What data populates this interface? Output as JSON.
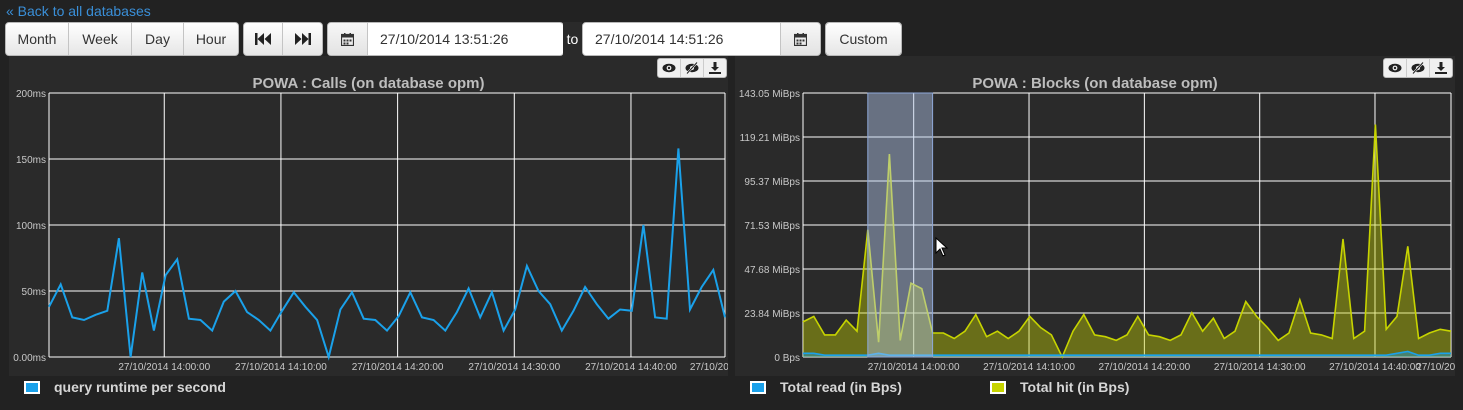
{
  "back_link": "« Back to all databases",
  "range_buttons": [
    "Month",
    "Week",
    "Day",
    "Hour"
  ],
  "nav_icons": [
    "skip-backward-icon",
    "skip-forward-icon"
  ],
  "date_from": "27/10/2014 13:51:26",
  "to_label": "to",
  "date_to": "27/10/2014 14:51:26",
  "custom_label": "Custom",
  "colors": {
    "series_blue": "#1aa1ea",
    "series_yellow": "#c7d400",
    "selection": "#b4c8ee"
  },
  "chart_data": [
    {
      "type": "line",
      "title": "POWA : Calls (on database opm)",
      "ylim": [
        0,
        200
      ],
      "yticks": [
        "0.00ms",
        "50ms",
        "100ms",
        "150ms",
        "200ms"
      ],
      "xtick_labels": [
        "27/10/2014 14:00:00",
        "27/10/2014 14:10:00",
        "27/10/2014 14:20:00",
        "27/10/2014 14:30:00",
        "27/10/2014 14:40:00",
        "27/10/2014"
      ],
      "grid": true,
      "legend_position": "bottom-left",
      "series": [
        {
          "name": "query runtime per second",
          "color": "#1aa1ea",
          "values": [
            38,
            55,
            30,
            28,
            32,
            35,
            90,
            0,
            64,
            20,
            62,
            74,
            29,
            28,
            20,
            42,
            50,
            34,
            28,
            20,
            35,
            49,
            38,
            28,
            0,
            36,
            49,
            29,
            28,
            20,
            31,
            49,
            30,
            28,
            20,
            34,
            52,
            30,
            49,
            20,
            36,
            69,
            50,
            40,
            20,
            35,
            53,
            40,
            29,
            36,
            35,
            100,
            30,
            29,
            158,
            36,
            53,
            66,
            30
          ]
        }
      ]
    },
    {
      "type": "area",
      "title": "POWA : Blocks (on database opm)",
      "ylim": [
        0,
        143.05
      ],
      "yticks": [
        "0 Bps",
        "23.84 MiBps",
        "47.68 MiBps",
        "71.53 MiBps",
        "95.37 MiBps",
        "119.21 MiBps",
        "143.05 MiBps"
      ],
      "xtick_labels": [
        "27/10/2014 14:00:00",
        "27/10/2014 14:10:00",
        "27/10/2014 14:20:00",
        "27/10/2014 14:30:00",
        "27/10/2014 14:40:00",
        "27/10/2014"
      ],
      "grid": true,
      "legend_position": "bottom",
      "series": [
        {
          "name": "Total read (in Bps)",
          "color": "#1aa1ea",
          "values": [
            2,
            2,
            1,
            1,
            1,
            1,
            1,
            2,
            1,
            1,
            1,
            1,
            1,
            1,
            1,
            1,
            1,
            1,
            1,
            1,
            1,
            1,
            1,
            1,
            1,
            1,
            1,
            1,
            1,
            1,
            1,
            1,
            1,
            1,
            1,
            1,
            1,
            1,
            1,
            1,
            1,
            1,
            1,
            1,
            1,
            1,
            1,
            1,
            1,
            1,
            1,
            1,
            1,
            1,
            1,
            2,
            3,
            1,
            1,
            2,
            2
          ]
        },
        {
          "name": "Total hit (in Bps)",
          "color": "#c7d400",
          "values": [
            19,
            22,
            12,
            12,
            20,
            14,
            69,
            8,
            110,
            9,
            40,
            37,
            13,
            13,
            10,
            14,
            23,
            11,
            14,
            10,
            14,
            22,
            16,
            12,
            0,
            14,
            23,
            12,
            11,
            9,
            12,
            22,
            12,
            11,
            9,
            12,
            24,
            14,
            21,
            10,
            14,
            30,
            22,
            16,
            9,
            13,
            31,
            13,
            12,
            10,
            64,
            10,
            14,
            126,
            15,
            22,
            60,
            10,
            13,
            15,
            14
          ]
        }
      ],
      "selection_range_x": [
        6,
        12
      ]
    }
  ],
  "panel_tools": [
    "eye-icon",
    "eye-slash-icon",
    "download-icon"
  ]
}
